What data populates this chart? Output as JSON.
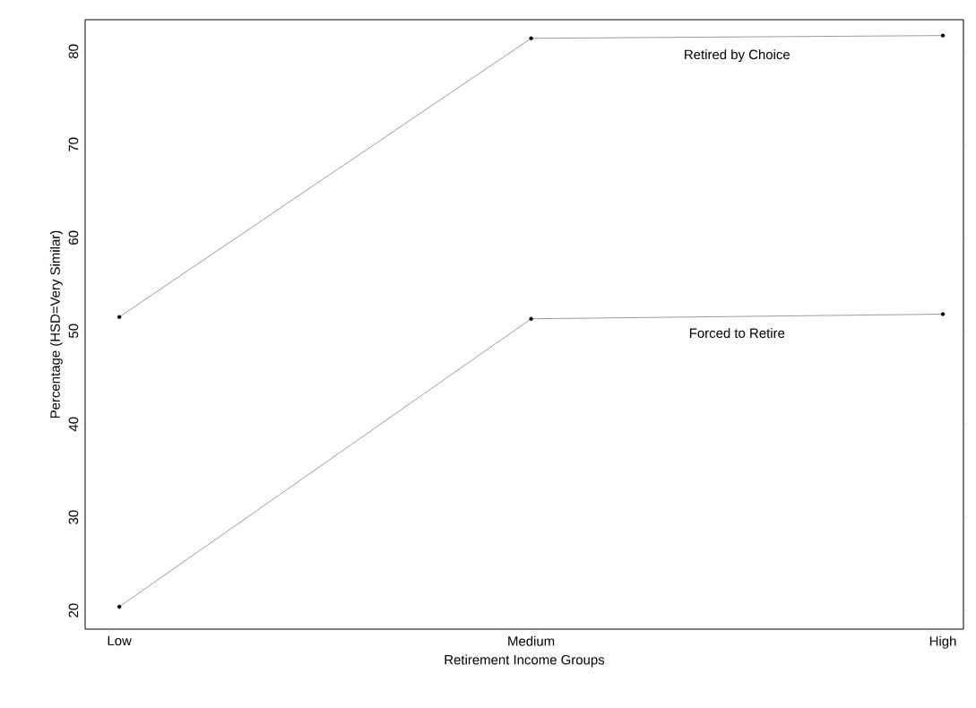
{
  "chart_data": {
    "type": "line",
    "xlabel": "Retirement Income Groups",
    "ylabel": "Percentage (HSD=Very Similar)",
    "categories": [
      "Low",
      "Medium",
      "High"
    ],
    "series": [
      {
        "name": "Retired by Choice",
        "color": "#000000",
        "values": [
          51.5,
          81.4,
          81.7
        ]
      },
      {
        "name": "Forced to Retire",
        "color": "#000000",
        "values": [
          20.4,
          51.3,
          51.8
        ]
      }
    ],
    "ylim": [
      18,
      83.4
    ],
    "yticks": [
      20,
      30,
      40,
      50,
      60,
      70,
      80
    ],
    "marker": "circle",
    "line_style": "solid",
    "grid": false,
    "legend": false
  }
}
